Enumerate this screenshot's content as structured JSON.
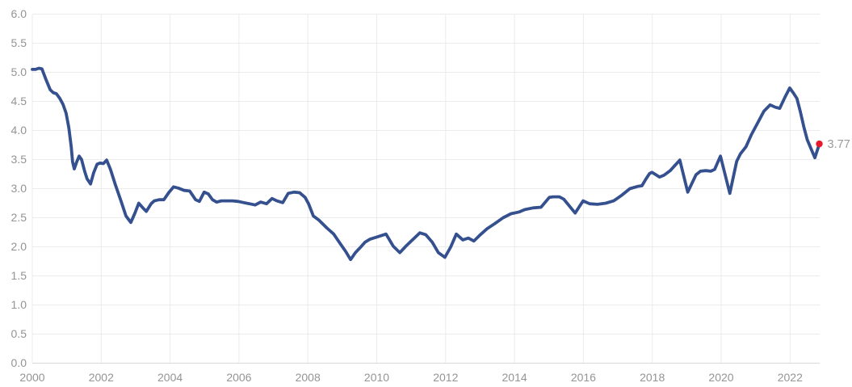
{
  "chart_data": {
    "type": "line",
    "title": "",
    "xlabel": "",
    "ylabel": "",
    "xlim": [
      2000,
      2022.85
    ],
    "ylim": [
      0,
      6
    ],
    "grid": true,
    "legend": "none",
    "y_ticks": [
      {
        "value": 6.0,
        "label": "6.0"
      },
      {
        "value": 5.5,
        "label": "5.5"
      },
      {
        "value": 5.0,
        "label": "5.0"
      },
      {
        "value": 4.5,
        "label": "4.5"
      },
      {
        "value": 4.0,
        "label": "4.0"
      },
      {
        "value": 3.5,
        "label": "3.5"
      },
      {
        "value": 3.0,
        "label": "3.0"
      },
      {
        "value": 2.5,
        "label": "2.5"
      },
      {
        "value": 2.0,
        "label": "2.0"
      },
      {
        "value": 1.5,
        "label": "1.5"
      },
      {
        "value": 1.0,
        "label": "1.0"
      },
      {
        "value": 0.5,
        "label": "0.5"
      },
      {
        "value": 0.0,
        "label": "0.0"
      }
    ],
    "x_ticks": [
      {
        "value": 2000,
        "label": "2000"
      },
      {
        "value": 2002,
        "label": "2002"
      },
      {
        "value": 2004,
        "label": "2004"
      },
      {
        "value": 2006,
        "label": "2006"
      },
      {
        "value": 2008,
        "label": "2008"
      },
      {
        "value": 2010,
        "label": "2010"
      },
      {
        "value": 2012,
        "label": "2012"
      },
      {
        "value": 2014,
        "label": "2014"
      },
      {
        "value": 2016,
        "label": "2016"
      },
      {
        "value": 2018,
        "label": "2018"
      },
      {
        "value": 2020,
        "label": "2020"
      },
      {
        "value": 2022,
        "label": "2022"
      }
    ],
    "series": [
      {
        "name": "rate",
        "color": "#35508e",
        "points": [
          [
            2000.0,
            5.05
          ],
          [
            2000.09,
            5.05
          ],
          [
            2000.19,
            5.07
          ],
          [
            2000.28,
            5.06
          ],
          [
            2000.4,
            4.87
          ],
          [
            2000.52,
            4.7
          ],
          [
            2000.61,
            4.65
          ],
          [
            2000.7,
            4.63
          ],
          [
            2000.8,
            4.55
          ],
          [
            2000.89,
            4.45
          ],
          [
            2000.98,
            4.3
          ],
          [
            2001.06,
            4.05
          ],
          [
            2001.13,
            3.72
          ],
          [
            2001.17,
            3.46
          ],
          [
            2001.22,
            3.34
          ],
          [
            2001.29,
            3.46
          ],
          [
            2001.36,
            3.56
          ],
          [
            2001.43,
            3.5
          ],
          [
            2001.52,
            3.3
          ],
          [
            2001.59,
            3.17
          ],
          [
            2001.69,
            3.08
          ],
          [
            2001.78,
            3.27
          ],
          [
            2001.88,
            3.42
          ],
          [
            2001.97,
            3.44
          ],
          [
            2002.06,
            3.43
          ],
          [
            2002.16,
            3.49
          ],
          [
            2002.27,
            3.33
          ],
          [
            2002.41,
            3.07
          ],
          [
            2002.58,
            2.78
          ],
          [
            2002.72,
            2.53
          ],
          [
            2002.86,
            2.42
          ],
          [
            2002.98,
            2.58
          ],
          [
            2003.09,
            2.75
          ],
          [
            2003.21,
            2.67
          ],
          [
            2003.31,
            2.61
          ],
          [
            2003.45,
            2.74
          ],
          [
            2003.54,
            2.79
          ],
          [
            2003.68,
            2.81
          ],
          [
            2003.82,
            2.81
          ],
          [
            2003.96,
            2.93
          ],
          [
            2004.1,
            3.03
          ],
          [
            2004.24,
            3.01
          ],
          [
            2004.41,
            2.97
          ],
          [
            2004.57,
            2.96
          ],
          [
            2004.74,
            2.81
          ],
          [
            2004.85,
            2.78
          ],
          [
            2004.99,
            2.94
          ],
          [
            2005.11,
            2.91
          ],
          [
            2005.23,
            2.81
          ],
          [
            2005.35,
            2.77
          ],
          [
            2005.49,
            2.79
          ],
          [
            2005.65,
            2.79
          ],
          [
            2005.81,
            2.79
          ],
          [
            2005.98,
            2.78
          ],
          [
            2006.14,
            2.76
          ],
          [
            2006.31,
            2.74
          ],
          [
            2006.47,
            2.72
          ],
          [
            2006.63,
            2.77
          ],
          [
            2006.8,
            2.74
          ],
          [
            2006.96,
            2.83
          ],
          [
            2007.1,
            2.79
          ],
          [
            2007.27,
            2.76
          ],
          [
            2007.43,
            2.92
          ],
          [
            2007.6,
            2.94
          ],
          [
            2007.76,
            2.93
          ],
          [
            2007.92,
            2.85
          ],
          [
            2008.02,
            2.74
          ],
          [
            2008.16,
            2.53
          ],
          [
            2008.32,
            2.46
          ],
          [
            2008.56,
            2.32
          ],
          [
            2008.75,
            2.22
          ],
          [
            2008.91,
            2.08
          ],
          [
            2009.1,
            1.92
          ],
          [
            2009.24,
            1.78
          ],
          [
            2009.38,
            1.9
          ],
          [
            2009.54,
            2.0
          ],
          [
            2009.66,
            2.08
          ],
          [
            2009.8,
            2.13
          ],
          [
            2010.01,
            2.17
          ],
          [
            2010.27,
            2.22
          ],
          [
            2010.48,
            2.01
          ],
          [
            2010.67,
            1.9
          ],
          [
            2010.86,
            2.02
          ],
          [
            2011.09,
            2.15
          ],
          [
            2011.25,
            2.24
          ],
          [
            2011.42,
            2.21
          ],
          [
            2011.61,
            2.08
          ],
          [
            2011.79,
            1.9
          ],
          [
            2011.98,
            1.82
          ],
          [
            2012.15,
            2.0
          ],
          [
            2012.31,
            2.22
          ],
          [
            2012.5,
            2.12
          ],
          [
            2012.66,
            2.15
          ],
          [
            2012.82,
            2.1
          ],
          [
            2013.01,
            2.21
          ],
          [
            2013.2,
            2.31
          ],
          [
            2013.43,
            2.4
          ],
          [
            2013.67,
            2.5
          ],
          [
            2013.9,
            2.57
          ],
          [
            2014.14,
            2.6
          ],
          [
            2014.3,
            2.64
          ],
          [
            2014.54,
            2.67
          ],
          [
            2014.77,
            2.68
          ],
          [
            2015.01,
            2.85
          ],
          [
            2015.12,
            2.86
          ],
          [
            2015.3,
            2.86
          ],
          [
            2015.43,
            2.82
          ],
          [
            2015.76,
            2.58
          ],
          [
            2015.99,
            2.79
          ],
          [
            2016.18,
            2.74
          ],
          [
            2016.41,
            2.73
          ],
          [
            2016.65,
            2.75
          ],
          [
            2016.88,
            2.79
          ],
          [
            2017.12,
            2.89
          ],
          [
            2017.35,
            3.0
          ],
          [
            2017.59,
            3.04
          ],
          [
            2017.7,
            3.05
          ],
          [
            2017.82,
            3.17
          ],
          [
            2017.92,
            3.26
          ],
          [
            2017.99,
            3.28
          ],
          [
            2018.21,
            3.2
          ],
          [
            2018.34,
            3.23
          ],
          [
            2018.52,
            3.31
          ],
          [
            2018.66,
            3.4
          ],
          [
            2018.8,
            3.49
          ],
          [
            2019.03,
            2.94
          ],
          [
            2019.27,
            3.24
          ],
          [
            2019.4,
            3.3
          ],
          [
            2019.55,
            3.31
          ],
          [
            2019.7,
            3.3
          ],
          [
            2019.81,
            3.33
          ],
          [
            2019.98,
            3.56
          ],
          [
            2020.25,
            2.92
          ],
          [
            2020.45,
            3.47
          ],
          [
            2020.56,
            3.6
          ],
          [
            2020.72,
            3.72
          ],
          [
            2020.88,
            3.93
          ],
          [
            2021.07,
            4.14
          ],
          [
            2021.24,
            4.33
          ],
          [
            2021.42,
            4.44
          ],
          [
            2021.57,
            4.4
          ],
          [
            2021.7,
            4.38
          ],
          [
            2021.85,
            4.57
          ],
          [
            2021.99,
            4.73
          ],
          [
            2022.1,
            4.64
          ],
          [
            2022.2,
            4.55
          ],
          [
            2022.3,
            4.32
          ],
          [
            2022.4,
            4.06
          ],
          [
            2022.5,
            3.84
          ],
          [
            2022.72,
            3.53
          ],
          [
            2022.85,
            3.77
          ]
        ]
      }
    ],
    "end_dot": {
      "x": 2022.85,
      "y": 3.77,
      "label": "3.77",
      "color": "#e8192d",
      "label_color": "#9a9a9a"
    },
    "colors": {
      "line": "#35508e",
      "gridline": "#ebebeb",
      "axis_line": "#d8d8d8",
      "tick_label": "#949494",
      "background": "#ffffff"
    }
  }
}
